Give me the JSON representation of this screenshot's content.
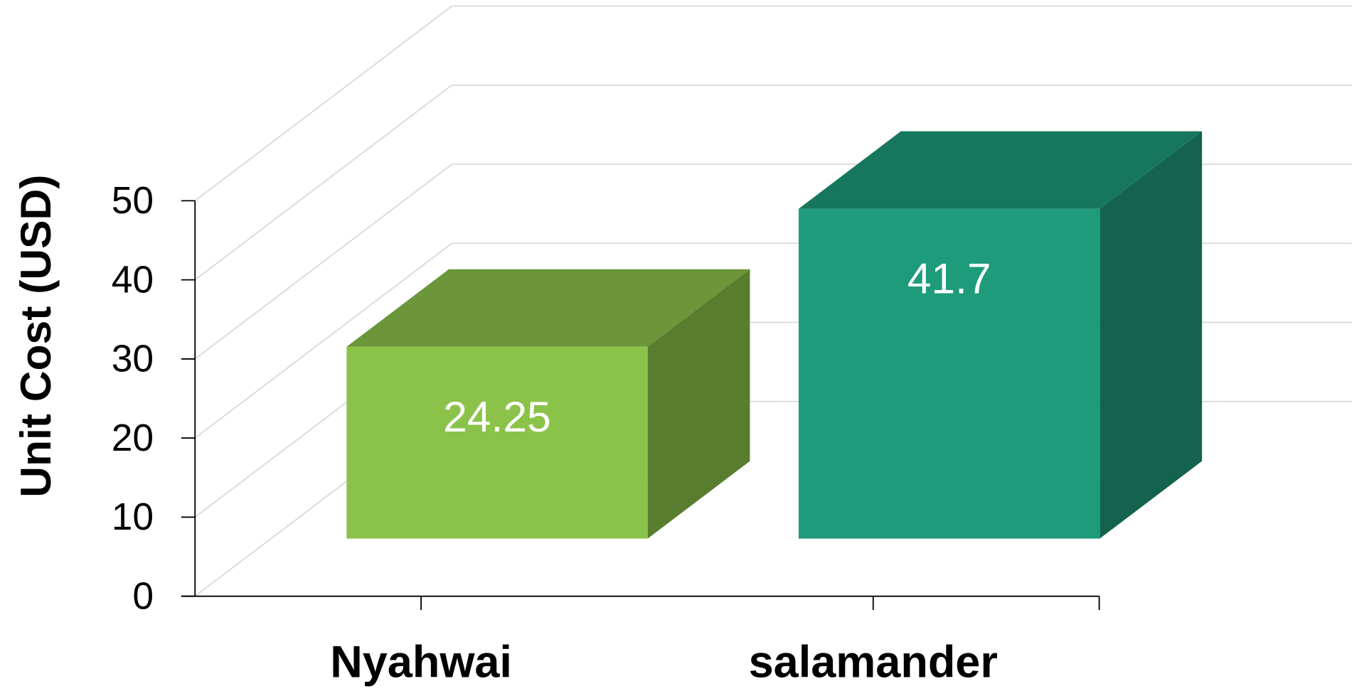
{
  "chart_data": {
    "type": "bar3d",
    "y_label": "Unit Cost (USD)",
    "categories": [
      "Nyahwai",
      "salamander"
    ],
    "values": [
      24.25,
      41.7
    ],
    "colors": [
      "#8bc34a",
      "#1e9b7a"
    ],
    "ylim": [
      0,
      50
    ],
    "yticks": [
      0,
      10,
      20,
      30,
      40,
      50
    ],
    "grid": true
  }
}
